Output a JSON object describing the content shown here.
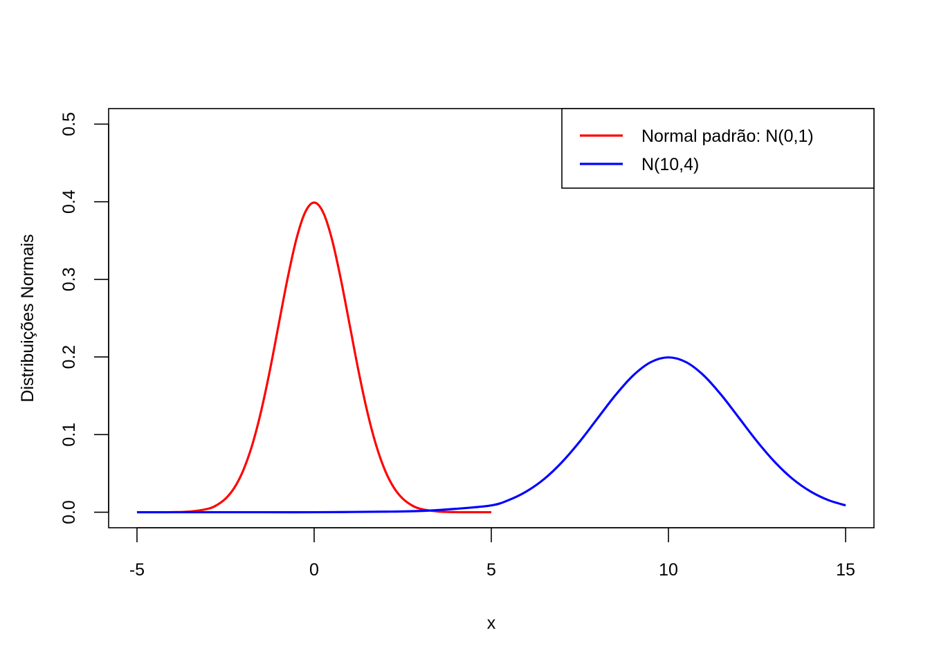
{
  "chart_data": {
    "type": "line",
    "xlabel": "x",
    "ylabel": "Distribuições Normais",
    "xlim": [
      -5.8,
      15.8
    ],
    "ylim": [
      -0.02,
      0.52
    ],
    "x_ticks": [
      -5,
      0,
      5,
      10,
      15
    ],
    "x_tick_labels": [
      "-5",
      "0",
      "5",
      "10",
      "15"
    ],
    "y_ticks": [
      0.0,
      0.1,
      0.2,
      0.3,
      0.4,
      0.5
    ],
    "y_tick_labels": [
      "0.0",
      "0.1",
      "0.2",
      "0.3",
      "0.4",
      "0.5"
    ],
    "grid": false,
    "legend_position": "top-right",
    "series": [
      {
        "name": "Normal padrão: N(0,1)",
        "color": "#ff0000",
        "x": [
          -5.0,
          -4.5,
          -4.0,
          -3.5,
          -3.0,
          -2.75,
          -2.5,
          -2.25,
          -2.0,
          -1.75,
          -1.5,
          -1.25,
          -1.0,
          -0.75,
          -0.5,
          -0.25,
          0.0,
          0.25,
          0.5,
          0.75,
          1.0,
          1.25,
          1.5,
          1.75,
          2.0,
          2.25,
          2.5,
          2.75,
          3.0,
          3.5,
          4.0,
          4.5,
          5.0
        ],
        "y": [
          0.0,
          0.0,
          0.0001,
          0.0009,
          0.0044,
          0.0091,
          0.0175,
          0.0317,
          0.054,
          0.0863,
          0.1295,
          0.1826,
          0.242,
          0.3011,
          0.3521,
          0.3867,
          0.3989,
          0.3867,
          0.3521,
          0.3011,
          0.242,
          0.1826,
          0.1295,
          0.0863,
          0.054,
          0.0317,
          0.0175,
          0.0091,
          0.0044,
          0.0009,
          0.0001,
          0.0,
          0.0
        ]
      },
      {
        "name": "N(10,4)",
        "color": "#0000ff",
        "x": [
          -5.0,
          -2.0,
          0.0,
          2.0,
          3.0,
          4.0,
          5.0,
          5.5,
          6.0,
          6.5,
          7.0,
          7.5,
          8.0,
          8.5,
          9.0,
          9.5,
          10.0,
          10.5,
          11.0,
          11.5,
          12.0,
          12.5,
          13.0,
          13.5,
          14.0,
          14.5,
          15.0
        ],
        "y": [
          0.0,
          0.0,
          0.0,
          0.0007,
          0.0016,
          0.0044,
          0.0088,
          0.0158,
          0.027,
          0.0431,
          0.0648,
          0.0913,
          0.121,
          0.1506,
          0.176,
          0.1933,
          0.1995,
          0.1933,
          0.176,
          0.1506,
          0.121,
          0.0913,
          0.0648,
          0.0431,
          0.027,
          0.0158,
          0.0088
        ]
      }
    ]
  }
}
